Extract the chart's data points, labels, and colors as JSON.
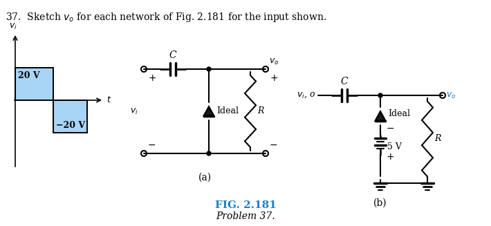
{
  "title": "37.  Sketch $v_o$ for each network of Fig. 2.181 for the input shown.",
  "fig_label": "FIG. 2.181",
  "fig_sublabel": "Problem 37.",
  "bg_color": "#ffffff",
  "waveform_fill": "#a8d4f5",
  "text_blue": "#1e7fc2",
  "diode_fill": "#1a1a1a",
  "label_high": "20 V",
  "label_low": "−20 V",
  "label_a": "(a)",
  "label_b": "(b)",
  "cap_label": "C",
  "diode_label": "Ideal",
  "res_label": "R",
  "bat_label": "5 V",
  "vo_label": "$v_o$",
  "vi_label": "$v_i$",
  "plus": "+",
  "minus": "−"
}
